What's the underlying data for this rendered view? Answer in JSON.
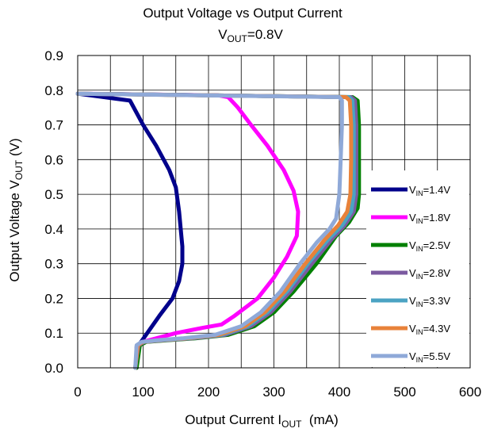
{
  "chart_data": {
    "type": "line",
    "title": "Output Voltage vs Output Current",
    "subtitle": {
      "main": "V",
      "sub": "OUT",
      "rest": "=0.8V"
    },
    "xlabel": {
      "main": "Output Current I",
      "sub": "OUT",
      "rest": "  (mA)"
    },
    "ylabel": {
      "main": "Output Voltage V",
      "sub": "OUT",
      "rest": " (V)"
    },
    "xlim": [
      0,
      600
    ],
    "ylim": [
      0,
      0.9
    ],
    "x_ticks": [
      "0",
      "100",
      "200",
      "300",
      "400",
      "500",
      "600"
    ],
    "y_ticks": [
      "0.0",
      "0.1",
      "0.2",
      "0.3",
      "0.4",
      "0.5",
      "0.6",
      "0.7",
      "0.8",
      "0.9"
    ],
    "grid": true,
    "legend_position": "right",
    "series": [
      {
        "name": {
          "main": "V",
          "sub": "IN",
          "rest": "=1.4V"
        },
        "color": "#00008B",
        "points": [
          [
            0,
            0.79
          ],
          [
            80,
            0.77
          ],
          [
            100,
            0.7
          ],
          [
            120,
            0.64
          ],
          [
            140,
            0.57
          ],
          [
            150,
            0.52
          ],
          [
            155,
            0.45
          ],
          [
            160,
            0.35
          ],
          [
            160,
            0.3
          ],
          [
            155,
            0.25
          ],
          [
            145,
            0.2
          ],
          [
            125,
            0.15
          ],
          [
            110,
            0.11
          ],
          [
            95,
            0.07
          ],
          [
            90,
            0.06
          ],
          [
            90,
            0.0
          ]
        ]
      },
      {
        "name": {
          "main": "V",
          "sub": "IN",
          "rest": "=1.8V"
        },
        "color": "#FF00FF",
        "points": [
          [
            0,
            0.79
          ],
          [
            215,
            0.785
          ],
          [
            230,
            0.78
          ],
          [
            245,
            0.75
          ],
          [
            265,
            0.7
          ],
          [
            290,
            0.64
          ],
          [
            315,
            0.57
          ],
          [
            330,
            0.51
          ],
          [
            337,
            0.45
          ],
          [
            335,
            0.38
          ],
          [
            320,
            0.32
          ],
          [
            300,
            0.26
          ],
          [
            275,
            0.2
          ],
          [
            240,
            0.15
          ],
          [
            220,
            0.125
          ],
          [
            190,
            0.115
          ],
          [
            150,
            0.1
          ],
          [
            120,
            0.085
          ],
          [
            100,
            0.075
          ],
          [
            92,
            0.065
          ],
          [
            90,
            0.0
          ]
        ]
      },
      {
        "name": {
          "main": "V",
          "sub": "IN",
          "rest": "=2.5V"
        },
        "color": "#008000",
        "points": [
          [
            0,
            0.79
          ],
          [
            420,
            0.78
          ],
          [
            428,
            0.77
          ],
          [
            430,
            0.7
          ],
          [
            430,
            0.6
          ],
          [
            430,
            0.5
          ],
          [
            428,
            0.46
          ],
          [
            415,
            0.42
          ],
          [
            395,
            0.38
          ],
          [
            365,
            0.3
          ],
          [
            330,
            0.22
          ],
          [
            300,
            0.16
          ],
          [
            270,
            0.12
          ],
          [
            230,
            0.095
          ],
          [
            180,
            0.085
          ],
          [
            140,
            0.08
          ],
          [
            105,
            0.075
          ],
          [
            95,
            0.065
          ],
          [
            90,
            0.0
          ]
        ]
      },
      {
        "name": {
          "main": "V",
          "sub": "IN",
          "rest": "=2.8V"
        },
        "color": "#7B5AA0",
        "points": [
          [
            0,
            0.79
          ],
          [
            418,
            0.78
          ],
          [
            424,
            0.77
          ],
          [
            426,
            0.7
          ],
          [
            426,
            0.6
          ],
          [
            426,
            0.5
          ],
          [
            422,
            0.45
          ],
          [
            408,
            0.41
          ],
          [
            388,
            0.37
          ],
          [
            358,
            0.3
          ],
          [
            325,
            0.22
          ],
          [
            295,
            0.16
          ],
          [
            265,
            0.12
          ],
          [
            225,
            0.095
          ],
          [
            175,
            0.085
          ],
          [
            135,
            0.08
          ],
          [
            102,
            0.075
          ],
          [
            93,
            0.065
          ],
          [
            88,
            0.0
          ]
        ]
      },
      {
        "name": {
          "main": "V",
          "sub": "IN",
          "rest": "=3.3V"
        },
        "color": "#4BA3C3",
        "points": [
          [
            0,
            0.79
          ],
          [
            415,
            0.78
          ],
          [
            420,
            0.77
          ],
          [
            422,
            0.7
          ],
          [
            422,
            0.6
          ],
          [
            422,
            0.5
          ],
          [
            418,
            0.45
          ],
          [
            404,
            0.41
          ],
          [
            383,
            0.37
          ],
          [
            352,
            0.3
          ],
          [
            320,
            0.22
          ],
          [
            290,
            0.16
          ],
          [
            260,
            0.12
          ],
          [
            220,
            0.095
          ],
          [
            170,
            0.085
          ],
          [
            130,
            0.08
          ],
          [
            100,
            0.075
          ],
          [
            92,
            0.065
          ],
          [
            88,
            0.0
          ]
        ]
      },
      {
        "name": {
          "main": "V",
          "sub": "IN",
          "rest": "=4.3V"
        },
        "color": "#E8823A",
        "points": [
          [
            0,
            0.79
          ],
          [
            410,
            0.78
          ],
          [
            416,
            0.77
          ],
          [
            418,
            0.7
          ],
          [
            418,
            0.6
          ],
          [
            417,
            0.5
          ],
          [
            412,
            0.45
          ],
          [
            398,
            0.41
          ],
          [
            378,
            0.37
          ],
          [
            348,
            0.3
          ],
          [
            316,
            0.22
          ],
          [
            286,
            0.16
          ],
          [
            256,
            0.12
          ],
          [
            216,
            0.095
          ],
          [
            166,
            0.085
          ],
          [
            128,
            0.08
          ],
          [
            100,
            0.075
          ],
          [
            92,
            0.065
          ],
          [
            88,
            0.0
          ]
        ]
      },
      {
        "name": {
          "main": "V",
          "sub": "IN",
          "rest": "=5.5V"
        },
        "color": "#8FA9D8",
        "points": [
          [
            0,
            0.79
          ],
          [
            400,
            0.78
          ],
          [
            404,
            0.77
          ],
          [
            404,
            0.7
          ],
          [
            402,
            0.6
          ],
          [
            400,
            0.5
          ],
          [
            395,
            0.43
          ],
          [
            385,
            0.4
          ],
          [
            365,
            0.36
          ],
          [
            340,
            0.3
          ],
          [
            310,
            0.22
          ],
          [
            280,
            0.16
          ],
          [
            250,
            0.12
          ],
          [
            210,
            0.095
          ],
          [
            160,
            0.085
          ],
          [
            125,
            0.08
          ],
          [
            98,
            0.075
          ],
          [
            90,
            0.065
          ],
          [
            88,
            0.0
          ]
        ]
      }
    ]
  }
}
